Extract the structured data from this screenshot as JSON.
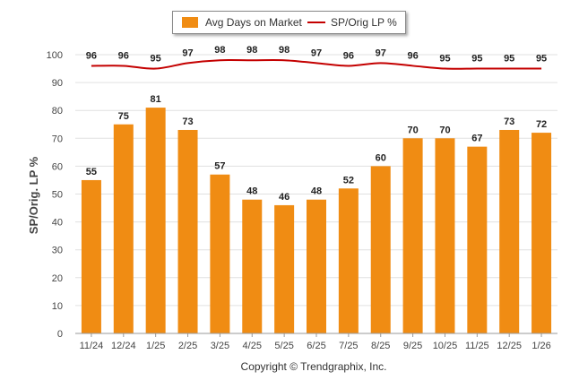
{
  "legend": {
    "bar_label": "Avg Days on Market",
    "line_label": "SP/Orig LP %"
  },
  "copyright": "Copyright © Trendgraphix, Inc.",
  "colors": {
    "bar": "#f08c13",
    "line": "#c40000",
    "grid": "#e0e0e0",
    "axis_text": "#444444"
  },
  "chart_data": {
    "type": "bar",
    "title": "",
    "xlabel": "",
    "ylabel": "SP/Orig. LP %",
    "ylim": [
      0,
      100
    ],
    "yticks": [
      0,
      10,
      20,
      30,
      40,
      50,
      60,
      70,
      80,
      90,
      100
    ],
    "grid": true,
    "legend_position": "top-center",
    "categories": [
      "11/24",
      "12/24",
      "1/25",
      "2/25",
      "3/25",
      "4/25",
      "5/25",
      "6/25",
      "7/25",
      "8/25",
      "9/25",
      "10/25",
      "11/25",
      "12/25",
      "1/26"
    ],
    "series": [
      {
        "name": "Avg Days on Market",
        "type": "bar",
        "values": [
          55,
          75,
          81,
          73,
          57,
          48,
          46,
          48,
          52,
          60,
          70,
          70,
          67,
          73,
          72
        ]
      },
      {
        "name": "SP/Orig LP %",
        "type": "line",
        "values": [
          96,
          96,
          95,
          97,
          98,
          98,
          98,
          97,
          96,
          97,
          96,
          95,
          95,
          95,
          95
        ]
      }
    ]
  }
}
